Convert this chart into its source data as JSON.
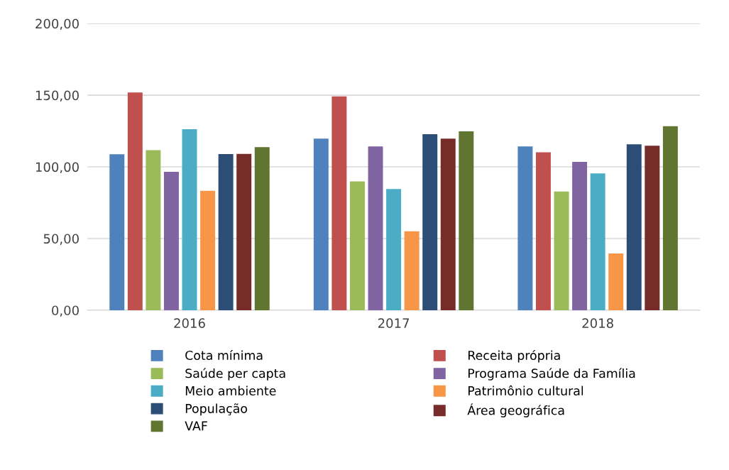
{
  "chart_data": {
    "type": "bar",
    "categories": [
      "2016",
      "2017",
      "2018"
    ],
    "series": [
      {
        "name": "Cota mínima",
        "color": "#4f81bd",
        "values": [
          108.8,
          119.7,
          114.3
        ]
      },
      {
        "name": "Receita própria",
        "color": "#c0504d",
        "values": [
          151.9,
          149.1,
          110.1
        ]
      },
      {
        "name": "Saúde per capta",
        "color": "#9bbb59",
        "values": [
          111.6,
          89.9,
          82.8
        ]
      },
      {
        "name": "Programa Saúde da Família",
        "color": "#8064a2",
        "values": [
          96.5,
          114.2,
          103.5
        ]
      },
      {
        "name": "Meio ambiente",
        "color": "#4bacc6",
        "values": [
          126.3,
          84.5,
          95.4
        ]
      },
      {
        "name": "Patrimônio cultural",
        "color": "#f79646",
        "values": [
          83.3,
          55.0,
          39.6
        ]
      },
      {
        "name": "População",
        "color": "#2c4d75",
        "values": [
          108.9,
          122.8,
          115.7
        ]
      },
      {
        "name": "Área geográfica",
        "color": "#772c2a",
        "values": [
          109.1,
          119.7,
          114.7
        ]
      },
      {
        "name": "VAF",
        "color": "#5f7530",
        "values": [
          113.8,
          124.8,
          128.3
        ]
      }
    ],
    "ylim": [
      0,
      200
    ],
    "yticks": [
      {
        "value": 0,
        "label": "0,00"
      },
      {
        "value": 50,
        "label": "50,00"
      },
      {
        "value": 100,
        "label": "100,00"
      },
      {
        "value": 150,
        "label": "150,00"
      },
      {
        "value": 200,
        "label": "200,00"
      }
    ],
    "grid": "y",
    "legend": "bottom"
  }
}
